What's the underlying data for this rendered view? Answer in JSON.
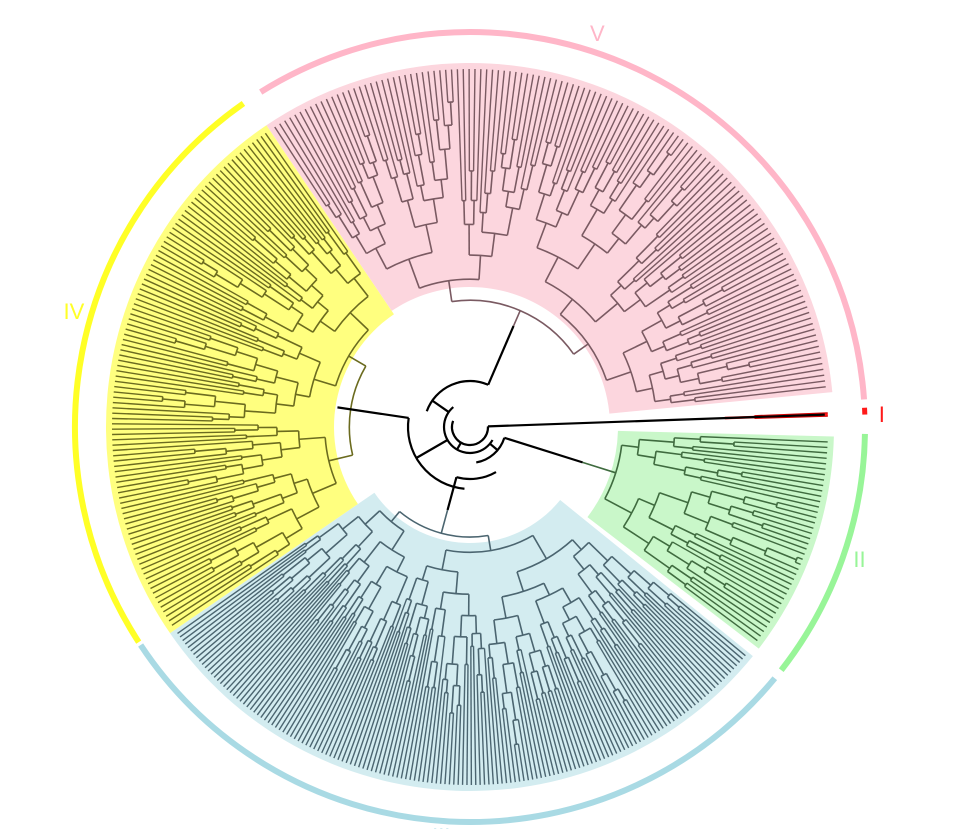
{
  "figure": {
    "clades": [
      {
        "id": "I",
        "label": "I",
        "color": "#ff1a1a",
        "sector_color": "#ff1a1a",
        "branch_color": "#cc0000",
        "tip_count": 2
      },
      {
        "id": "II",
        "label": "II",
        "color": "#98f598",
        "sector_color": "#c9f7c9",
        "branch_color": "#3f6b3f",
        "tip_count": 40
      },
      {
        "id": "III",
        "label": "III",
        "color": "#a9dae4",
        "sector_color": "#d3ecf0",
        "branch_color": "#4b6570",
        "tip_count": 150
      },
      {
        "id": "IV",
        "label": "IV",
        "color": "#ffff26",
        "sector_color": "#ffff7f",
        "branch_color": "#6b6b1f",
        "tip_count": 105
      },
      {
        "id": "V",
        "label": "V",
        "color": "#ffb6c8",
        "sector_color": "#fcd6de",
        "branch_color": "#7a5a62",
        "tip_count": 125
      }
    ],
    "backbone_color": "#000000",
    "tip_label_color": "#333333"
  }
}
